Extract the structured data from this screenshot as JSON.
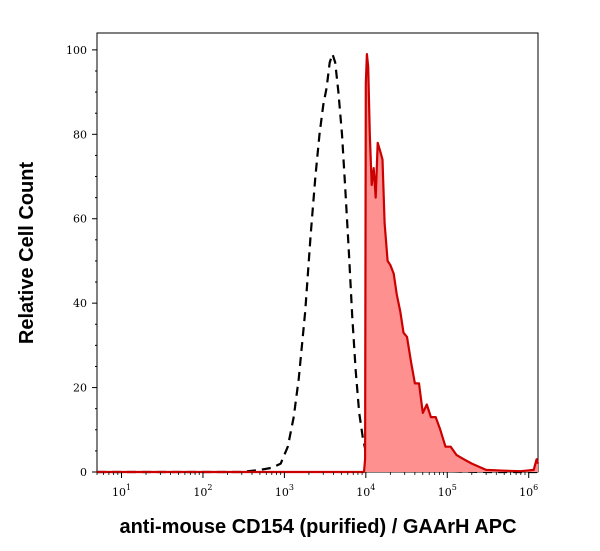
{
  "chart_data": {
    "type": "area",
    "xlabel": "anti-mouse CD154 (purified) / GAArH APC",
    "ylabel": "Relative Cell Count",
    "x_scale": "log",
    "xlim": [
      5,
      1300000
    ],
    "ylim": [
      0,
      104
    ],
    "x_ticks": [
      {
        "value": 10,
        "base": "10",
        "exp": "1"
      },
      {
        "value": 100,
        "base": "10",
        "exp": "2"
      },
      {
        "value": 1000,
        "base": "10",
        "exp": "3"
      },
      {
        "value": 10000,
        "base": "10",
        "exp": "4"
      },
      {
        "value": 100000,
        "base": "10",
        "exp": "5"
      },
      {
        "value": 1000000,
        "base": "10",
        "exp": "6"
      }
    ],
    "y_ticks": [
      0,
      20,
      40,
      60,
      80,
      100
    ],
    "series": [
      {
        "style": "dashed-black",
        "x": [
          5,
          300,
          500,
          700,
          900,
          1100,
          1300,
          1500,
          1800,
          2100,
          2400,
          2700,
          3000,
          3300,
          3600,
          3900,
          4200,
          4600,
          5100,
          5600,
          6200,
          6800,
          7500,
          8300,
          9200,
          10200,
          11500,
          14000,
          20000,
          40000,
          80000,
          150000,
          300000,
          1300000
        ],
        "y": [
          0,
          0,
          0.5,
          1,
          2,
          6,
          13,
          22,
          38,
          56,
          70,
          80,
          87,
          91,
          97,
          99,
          97,
          90,
          80,
          67,
          52,
          37,
          24,
          14,
          8,
          4,
          2,
          1,
          0.5,
          0.3,
          0.2,
          0.1,
          0,
          0
        ]
      },
      {
        "style": "filled-red",
        "color": "#cc0000",
        "fill": "#ff9090",
        "x": [
          5,
          5000,
          9500,
          9800,
          10000,
          10300,
          10700,
          11200,
          11800,
          12500,
          13200,
          14000,
          15000,
          16000,
          17000,
          18500,
          20000,
          22000,
          24000,
          26500,
          29000,
          32000,
          36000,
          40000,
          45000,
          50000,
          56000,
          63000,
          72000,
          82000,
          95000,
          110000,
          130000,
          160000,
          200000,
          300000,
          500000,
          800000,
          1150000,
          1250000,
          1300000
        ],
        "y": [
          0,
          0,
          0,
          3,
          92,
          99,
          96,
          80,
          68,
          72,
          65,
          78,
          76,
          74,
          59,
          50,
          49,
          47,
          42,
          38,
          33,
          32,
          26,
          21,
          21,
          14,
          16,
          13,
          13,
          10,
          6,
          6,
          4,
          3,
          2,
          0.5,
          0.3,
          0.2,
          0.5,
          3,
          2
        ]
      }
    ]
  }
}
